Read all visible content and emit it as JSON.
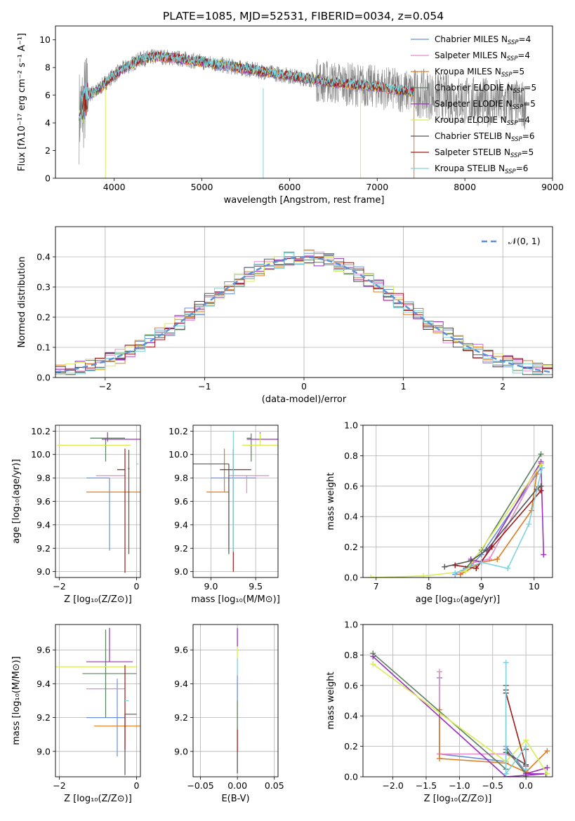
{
  "figure_title": "PLATE=1085, MJD=52531, FIBERID=0034, z=0.054",
  "colors": {
    "c0": "#6a8fd8",
    "c1": "#e88ac9",
    "c2": "#e07b1f",
    "c3": "#5a7f5e",
    "c4": "#9b30c0",
    "c5": "#d9ec55",
    "c6": "#555555",
    "c7": "#a01818",
    "c8": "#7fd3dc",
    "data": "#7f7f7f",
    "grid": "#b0b0b0",
    "normal": "#5b8fd8"
  },
  "chart_data": [
    {
      "id": "spectrum",
      "type": "line",
      "xlabel": "wavelength [Angstrom, rest frame]",
      "ylabel": "Flux [fλ10⁻¹⁷ erg cm⁻² s⁻¹ A⁻¹]",
      "xlim": [
        3330,
        9000
      ],
      "ylim": [
        0,
        11
      ],
      "x_ticks": [
        4000,
        5000,
        6000,
        7000,
        8000,
        9000
      ],
      "y_ticks": [
        0,
        2,
        4,
        6,
        8,
        10
      ],
      "grid": false,
      "legend_position": "top-right",
      "continuum_model": {
        "wavelength": [
          3600,
          3650,
          3700,
          3800,
          3950,
          4100,
          4300,
          4500,
          4800,
          5200,
          5600,
          6000,
          6500,
          7000,
          7300,
          7420
        ],
        "flux": [
          4.5,
          5.3,
          6.0,
          6.3,
          7.2,
          7.9,
          8.6,
          8.8,
          8.6,
          8.2,
          7.8,
          7.4,
          6.9,
          6.6,
          6.3,
          6.2
        ]
      },
      "data_extent": [
        3600,
        8700
      ],
      "legend": [
        {
          "label": "Chabrier MILES",
          "nssp": "4"
        },
        {
          "label": "Salpeter MILES",
          "nssp": "4"
        },
        {
          "label": "Kroupa MILES",
          "nssp": "5"
        },
        {
          "label": "Chabrier ELODIE",
          "nssp": "5"
        },
        {
          "label": "Salpeter ELODIE",
          "nssp": "5"
        },
        {
          "label": "Kroupa ELODIE",
          "nssp": "4"
        },
        {
          "label": "Chabrier STELIB",
          "nssp": "6"
        },
        {
          "label": "Salpeter STELIB",
          "nssp": "5"
        },
        {
          "label": "Kroupa STELIB",
          "nssp": "6"
        }
      ],
      "nssp_prefix": "N",
      "nssp_sub": "SSP",
      "legend_eq": "="
    },
    {
      "id": "residuals",
      "type": "step",
      "xlabel": "(data-model)/error",
      "ylabel": "Normed distribution",
      "xlim": [
        -2.5,
        2.5
      ],
      "ylim": [
        0,
        0.5
      ],
      "x_ticks": [
        -2,
        -1,
        0,
        1,
        2
      ],
      "y_ticks": [
        0.0,
        0.1,
        0.2,
        0.3,
        0.4
      ],
      "grid": true,
      "legend_position": "top-right",
      "legend_label": "𝒩(0, 1)",
      "bin_width": 0.1,
      "bin_start": -2.5
    },
    {
      "id": "age_vs_z",
      "type": "errorbar",
      "xlabel": "Z [log₁₀(Z/Z⊙)]",
      "ylabel": "age  [log₁₀(age/yr)]",
      "xlim": [
        -2.1,
        0.1
      ],
      "ylim": [
        8.95,
        10.25
      ],
      "x_ticks": [
        -2,
        0
      ],
      "y_ticks": [
        9.0,
        9.2,
        9.4,
        9.6,
        9.8,
        10.0,
        10.2
      ],
      "grid": true,
      "points": [
        {
          "x": -0.7,
          "xerr": [
            0.6,
            0.0
          ],
          "y": 9.8,
          "yerr": [
            0.62,
            0.0
          ]
        },
        {
          "x": -0.6,
          "xerr": [
            0.45,
            0.3
          ],
          "y": 9.82,
          "yerr": [
            0.0,
            0.0
          ]
        },
        {
          "x": -0.3,
          "xerr": [
            1.0,
            0.75
          ],
          "y": 9.68,
          "yerr": [
            0.0,
            0.0
          ]
        },
        {
          "x": -0.8,
          "xerr": [
            0.4,
            0.5
          ],
          "y": 10.14,
          "yerr": [
            0.2,
            0.0
          ]
        },
        {
          "x": -0.75,
          "xerr": [
            0.15,
            1.0
          ],
          "y": 10.13,
          "yerr": [
            0.02,
            0.06
          ]
        },
        {
          "x": -0.15,
          "xerr": [
            1.9,
            0.0
          ],
          "y": 10.08,
          "yerr": [
            0.0,
            0.0
          ]
        },
        {
          "x": -0.2,
          "xerr": [
            0.02,
            0.02
          ],
          "y": 9.88,
          "yerr": [
            0.73,
            0.16
          ]
        },
        {
          "x": -0.3,
          "xerr": [
            0.2,
            0.0
          ],
          "y": 9.87,
          "yerr": [
            0.88,
            0.18
          ]
        },
        {
          "x": 0.0,
          "xerr": [
            0.0,
            0.05
          ],
          "y": 9.92,
          "yerr": [
            0.0,
            0.0
          ]
        }
      ]
    },
    {
      "id": "age_vs_mass",
      "type": "errorbar",
      "xlabel": "mass [log₁₀(M/M⊙)]",
      "ylabel": "",
      "xlim": [
        8.8,
        9.75
      ],
      "ylim": [
        8.95,
        10.25
      ],
      "x_ticks": [
        9.0,
        9.5
      ],
      "y_ticks": [
        9.0,
        9.2,
        9.4,
        9.6,
        9.8,
        10.0,
        10.2
      ],
      "grid": true,
      "points": [
        {
          "x": 9.2,
          "xerr": [
            0.2,
            0.3
          ],
          "y": 9.8,
          "yerr": [
            0.62,
            0.0
          ]
        },
        {
          "x": 9.4,
          "xerr": [
            0.2,
            0.25
          ],
          "y": 9.82,
          "yerr": [
            0.15,
            0.0
          ]
        },
        {
          "x": 9.15,
          "xerr": [
            0.2,
            0.05
          ],
          "y": 9.68,
          "yerr": [
            0.0,
            0.37
          ]
        },
        {
          "x": 9.45,
          "xerr": [
            0.05,
            0.0
          ],
          "y": 10.14,
          "yerr": [
            0.2,
            0.04
          ]
        },
        {
          "x": 9.55,
          "xerr": [
            0.15,
            0.2
          ],
          "y": 10.13,
          "yerr": [
            0.02,
            0.06
          ]
        },
        {
          "x": 9.55,
          "xerr": [
            0.2,
            0.25
          ],
          "y": 10.08,
          "yerr": [
            0.0,
            0.1
          ]
        },
        {
          "x": 9.2,
          "xerr": [
            0.4,
            0.0
          ],
          "y": 9.92,
          "yerr": [
            0.77,
            0.0
          ]
        },
        {
          "x": 9.25,
          "xerr": [
            0.15,
            0.2
          ],
          "y": 9.87,
          "yerr": [
            0.87,
            0.18
          ]
        },
        {
          "x": 9.25,
          "xerr": [
            0.0,
            0.0
          ],
          "y": 9.92,
          "yerr": [
            0.75,
            0.28
          ]
        }
      ]
    },
    {
      "id": "mass_weight_vs_age",
      "type": "line",
      "xlabel": "age  [log₁₀(age/yr)]",
      "ylabel": "mass weight",
      "xlim": [
        6.75,
        10.35
      ],
      "ylim": [
        0,
        1
      ],
      "x_ticks": [
        7,
        8,
        9,
        10
      ],
      "y_ticks": [
        0.0,
        0.2,
        0.4,
        0.6,
        0.8,
        1.0
      ],
      "grid": true,
      "series": [
        {
          "x": [
            8.5,
            8.8,
            9.0,
            10.13
          ],
          "y": [
            0.02,
            0.08,
            0.15,
            0.72
          ]
        },
        {
          "x": [
            8.6,
            8.85,
            9.15,
            10.13
          ],
          "y": [
            0.03,
            0.1,
            0.12,
            0.75
          ]
        },
        {
          "x": [
            8.6,
            9.0,
            9.3,
            9.95,
            10.05
          ],
          "y": [
            0.02,
            0.1,
            0.12,
            0.44,
            0.68
          ]
        },
        {
          "x": [
            8.7,
            9.0,
            10.13
          ],
          "y": [
            0.06,
            0.18,
            0.81
          ]
        },
        {
          "x": [
            8.8,
            9.0,
            10.13,
            10.18
          ],
          "y": [
            0.12,
            0.1,
            0.76,
            0.15
          ]
        },
        {
          "x": [
            6.9,
            7.9,
            8.7,
            10.13
          ],
          "y": [
            0.0,
            0.01,
            0.04,
            0.74
          ]
        },
        {
          "x": [
            8.3,
            8.8,
            9.1,
            10.05,
            10.13
          ],
          "y": [
            0.07,
            0.11,
            0.18,
            0.58,
            0.6
          ]
        },
        {
          "x": [
            8.5,
            8.9,
            9.2,
            10.13
          ],
          "y": [
            0.08,
            0.06,
            0.2,
            0.57
          ]
        },
        {
          "x": [
            8.5,
            9.0,
            9.5,
            9.9,
            10.15
          ],
          "y": [
            0.03,
            0.1,
            0.06,
            0.35,
            0.72
          ]
        }
      ]
    },
    {
      "id": "mass_vs_z",
      "type": "errorbar",
      "xlabel": "Z [log₁₀(Z/Z⊙)]",
      "ylabel": "mass [log₁₀(M/M⊙)]",
      "xlim": [
        -2.1,
        0.1
      ],
      "ylim": [
        8.85,
        9.75
      ],
      "x_ticks": [
        -2,
        0
      ],
      "y_ticks": [
        9.0,
        9.2,
        9.4,
        9.6
      ],
      "grid": true,
      "points": [
        {
          "x": -0.5,
          "xerr": [
            0.8,
            0.2
          ],
          "y": 9.2,
          "yerr": [
            0.23,
            0.23
          ]
        },
        {
          "x": -0.65,
          "xerr": [
            0.65,
            0.35
          ],
          "y": 9.37,
          "yerr": [
            0.0,
            0.0
          ]
        },
        {
          "x": -0.3,
          "xerr": [
            0.8,
            0.45
          ],
          "y": 9.15,
          "yerr": [
            0.0,
            0.0
          ]
        },
        {
          "x": -0.8,
          "xerr": [
            0.6,
            0.8
          ],
          "y": 9.46,
          "yerr": [
            0.26,
            0.26
          ]
        },
        {
          "x": -0.7,
          "xerr": [
            0.6,
            0.6
          ],
          "y": 9.53,
          "yerr": [
            0.0,
            0.2
          ]
        },
        {
          "x": -0.7,
          "xerr": [
            1.4,
            0.7
          ],
          "y": 9.5,
          "yerr": [
            0.0,
            0.0
          ]
        },
        {
          "x": -0.3,
          "xerr": [
            0.0,
            0.3
          ],
          "y": 9.22,
          "yerr": [
            0.36,
            0.0
          ]
        },
        {
          "x": -0.3,
          "xerr": [
            0.0,
            0.0
          ],
          "y": 9.28,
          "yerr": [
            0.27,
            0.23
          ]
        },
        {
          "x": -0.25,
          "xerr": [
            0.05,
            0.05
          ],
          "y": 9.3,
          "yerr": [
            0.0,
            0.0
          ]
        }
      ]
    },
    {
      "id": "mass_vs_ebv",
      "type": "errorbar",
      "xlabel": "E(B-V)",
      "ylabel": "",
      "xlim": [
        -0.06,
        0.055
      ],
      "ylim": [
        8.85,
        9.75
      ],
      "x_ticks": [
        -0.05,
        0.0,
        0.05
      ],
      "x_tick_labels": [
        "−0.05",
        "0.00",
        "0.05"
      ],
      "y_ticks": [
        9.0,
        9.2,
        9.4,
        9.6
      ],
      "grid": true,
      "segments": [
        {
          "y1": 8.87,
          "y2": 9.0,
          "c": "c6"
        },
        {
          "y1": 9.0,
          "y2": 9.13,
          "c": "c7"
        },
        {
          "y1": 9.13,
          "y2": 9.3,
          "c": "c3"
        },
        {
          "y1": 9.3,
          "y2": 9.45,
          "c": "c0"
        },
        {
          "y1": 9.45,
          "y2": 9.55,
          "c": "c8"
        },
        {
          "y1": 9.55,
          "y2": 9.62,
          "c": "c5"
        },
        {
          "y1": 9.62,
          "y2": 9.73,
          "c": "c4"
        }
      ]
    },
    {
      "id": "mass_weight_vs_z",
      "type": "line",
      "xlabel": "Z [log₁₀(Z/Z⊙)]",
      "ylabel": "mass weight",
      "xlim": [
        -2.45,
        0.4
      ],
      "ylim": [
        0,
        1
      ],
      "x_ticks": [
        -2.0,
        -1.5,
        -1.0,
        -0.5,
        0.0
      ],
      "x_tick_labels": [
        "−2.0",
        "−1.5",
        "−1.0",
        "−0.5",
        "0.0"
      ],
      "y_ticks": [
        0.0,
        0.2,
        0.4,
        0.6,
        0.8,
        1.0
      ],
      "grid": true,
      "series": [
        {
          "x": [
            -1.3,
            -1.3,
            -0.3,
            -0.3,
            0.0
          ],
          "y": [
            0.65,
            0.15,
            0.1,
            0.2,
            0.03
          ]
        },
        {
          "x": [
            -1.3,
            -1.3,
            -0.3,
            0.0
          ],
          "y": [
            0.69,
            0.15,
            0.15,
            0.08
          ]
        },
        {
          "x": [
            -1.3,
            -1.3,
            -0.3,
            0.0,
            0.32
          ],
          "y": [
            0.44,
            0.12,
            0.09,
            0.03,
            0.17
          ]
        },
        {
          "x": [
            -2.3,
            -0.3,
            -0.3,
            0.0
          ],
          "y": [
            0.81,
            0.05,
            0.18,
            0.02
          ]
        },
        {
          "x": [
            -2.3,
            -0.3,
            0.3,
            0.0,
            0.32
          ],
          "y": [
            0.79,
            0.0,
            0.02,
            0.02,
            0.06
          ]
        },
        {
          "x": [
            -2.3,
            -0.3,
            0.0,
            0.32
          ],
          "y": [
            0.74,
            0.1,
            0.24,
            0.02
          ]
        },
        {
          "x": [
            -0.3,
            -0.3,
            0.0,
            0.0
          ],
          "y": [
            0.6,
            0.16,
            0.08,
            0.0
          ]
        },
        {
          "x": [
            -0.3,
            -0.3,
            0.0,
            0.0
          ],
          "y": [
            0.57,
            0.55,
            0.07,
            0.18
          ]
        },
        {
          "x": [
            -0.3,
            -0.3,
            0.0,
            0.0
          ],
          "y": [
            0.75,
            0.02,
            0.2,
            0.05
          ]
        }
      ]
    }
  ]
}
